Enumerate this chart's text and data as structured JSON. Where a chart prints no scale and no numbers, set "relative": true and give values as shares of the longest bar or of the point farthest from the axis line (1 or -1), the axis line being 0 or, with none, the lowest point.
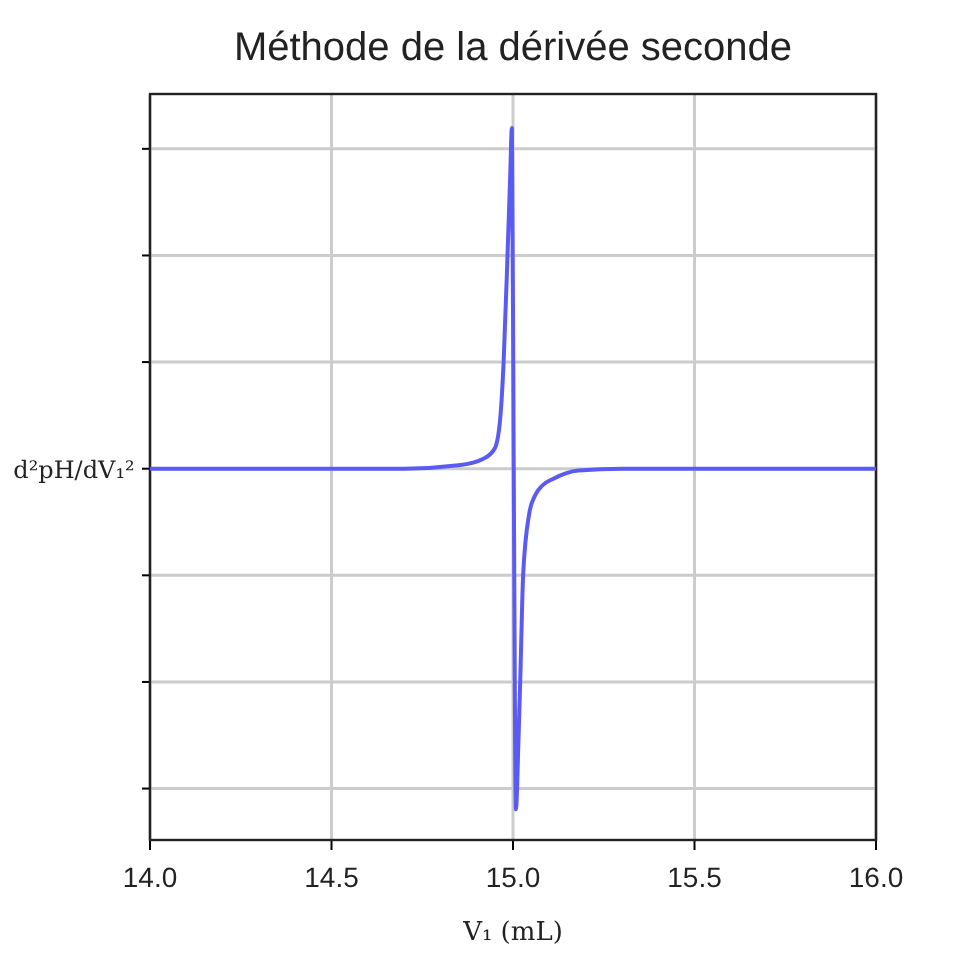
{
  "chart_data": {
    "type": "line",
    "title": "Méthode de la dérivée seconde",
    "xlabel": "V₁ (mL)",
    "ylabel": "d²pH/dV₁²",
    "relative": true,
    "grid": true,
    "xlim": [
      14,
      16
    ],
    "xticks": [
      {
        "value": 14,
        "label": "14.0"
      },
      14.5,
      {
        "value": 15,
        "label": "15.0"
      },
      15.5,
      {
        "value": 16,
        "label": "16.0"
      }
    ],
    "series": [
      {
        "color": "#5a5af5",
        "x": [
          14,
          14.7,
          14.85,
          14.92,
          14.95,
          14.965,
          14.974,
          14.985,
          14.992,
          14.997,
          15.002,
          15.008,
          15.015,
          15.02,
          15.028,
          15.045,
          15.06,
          15.08,
          15.11,
          15.18,
          15.3,
          16
        ],
        "values": [
          0,
          0,
          0.01,
          0.03,
          0.06,
          0.15,
          0.31,
          0.63,
          0.85,
          1,
          0,
          -1,
          -0.8,
          -0.62,
          -0.31,
          -0.13,
          -0.08,
          -0.05,
          -0.03,
          -0.005,
          0,
          0
        ]
      }
    ]
  }
}
